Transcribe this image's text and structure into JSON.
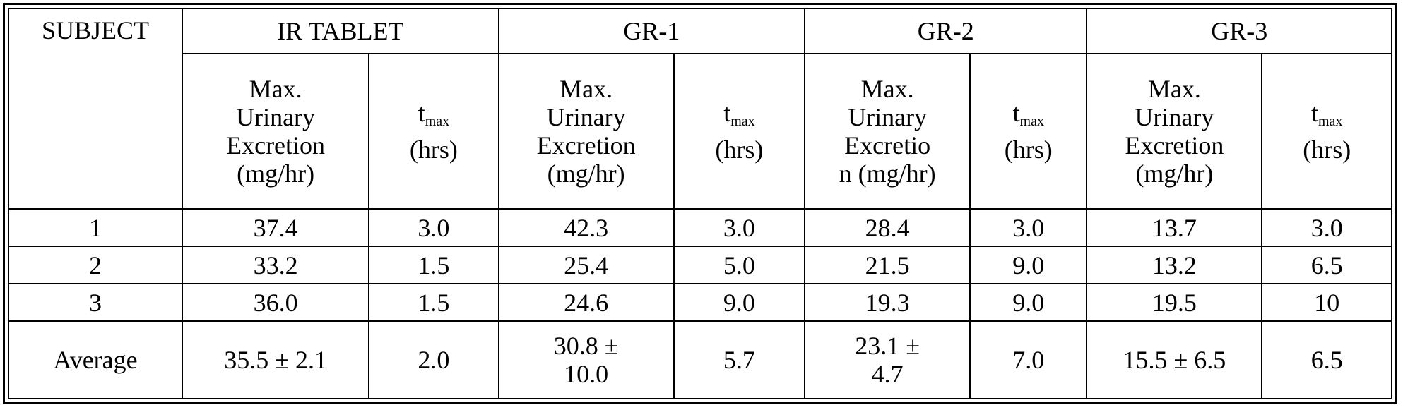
{
  "table": {
    "subject_header": "SUBJECT",
    "groups": [
      "IR TABLET",
      "GR-1",
      "GR-2",
      "GR-3"
    ],
    "sub_headers": [
      {
        "max_lines": [
          "Max.",
          "Urinary",
          "Excretion",
          "(mg/hr)"
        ],
        "tmax_t": "t",
        "tmax_sub": "max",
        "tmax_unit": "(hrs)"
      },
      {
        "max_lines": [
          "Max.",
          "Urinary",
          "Excretion",
          "(mg/hr)"
        ],
        "tmax_t": "t",
        "tmax_sub": "max",
        "tmax_unit": "(hrs)"
      },
      {
        "max_lines": [
          "Max.",
          "Urinary",
          "Excretio",
          "n (mg/hr)"
        ],
        "tmax_t": "t",
        "tmax_sub": "max",
        "tmax_unit": "(hrs)"
      },
      {
        "max_lines": [
          "Max.",
          "Urinary",
          "Excretion",
          "(mg/hr)"
        ],
        "tmax_t": "t",
        "tmax_sub": "max",
        "tmax_unit": "(hrs)"
      }
    ],
    "rows": [
      {
        "subject": "1",
        "cells": [
          "37.4",
          "3.0",
          "42.3",
          "3.0",
          "28.4",
          "3.0",
          "13.7",
          "3.0"
        ]
      },
      {
        "subject": "2",
        "cells": [
          "33.2",
          "1.5",
          "25.4",
          "5.0",
          "21.5",
          "9.0",
          "13.2",
          "6.5"
        ]
      },
      {
        "subject": "3",
        "cells": [
          "36.0",
          "1.5",
          "24.6",
          "9.0",
          "19.3",
          "9.0",
          "19.5",
          "10"
        ]
      }
    ],
    "average": {
      "label": "Average",
      "cells": [
        [
          "35.5 ± 2.1"
        ],
        [
          "2.0"
        ],
        [
          "30.8 ±",
          "10.0"
        ],
        [
          "5.7"
        ],
        [
          "23.1 ±",
          "4.7"
        ],
        [
          "7.0"
        ],
        [
          "15.5 ± 6.5"
        ],
        [
          "6.5"
        ]
      ]
    }
  }
}
